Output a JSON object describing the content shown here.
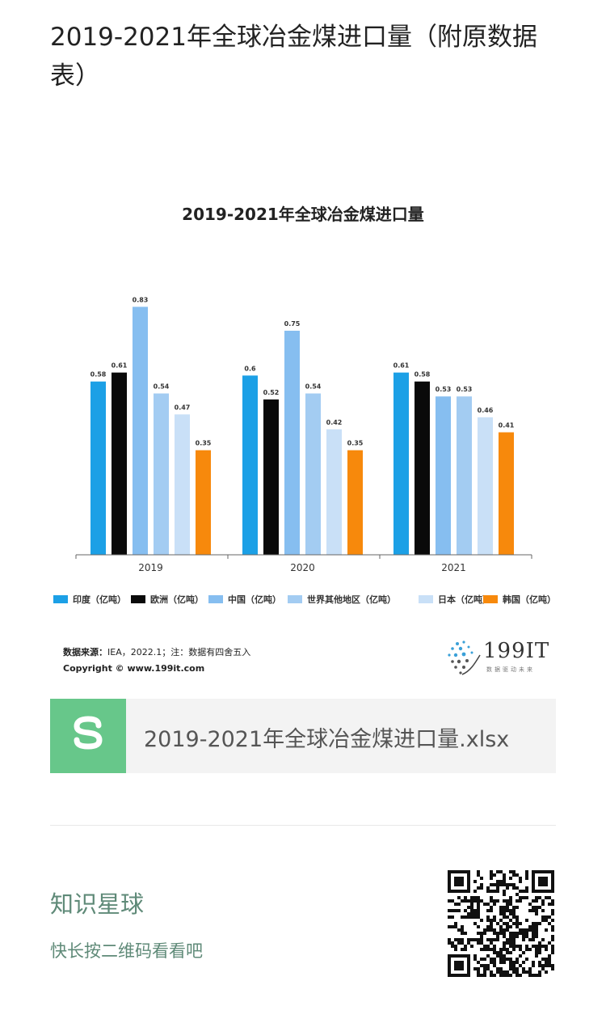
{
  "article": {
    "title": "2019-2021年全球冶金煤进口量（附原数据表）"
  },
  "chart_data": {
    "type": "bar",
    "title": "2019-2021年全球冶金煤进口量",
    "categories": [
      "2019",
      "2020",
      "2021"
    ],
    "series": [
      {
        "name": "印度（亿吨）",
        "color": "#1ca0e6",
        "values": [
          0.58,
          0.6,
          0.61
        ]
      },
      {
        "name": "欧洲（亿吨）",
        "color": "#0a0a0a",
        "values": [
          0.61,
          0.52,
          0.58
        ]
      },
      {
        "name": "中国（亿吨）",
        "color": "#86bef0",
        "values": [
          0.83,
          0.75,
          0.53
        ]
      },
      {
        "name": "世界其他地区（亿吨）",
        "color": "#a3ccf2",
        "values": [
          0.54,
          0.54,
          0.53
        ]
      },
      {
        "name": "日本（亿吨）",
        "color": "#c9e0f7",
        "values": [
          0.47,
          0.42,
          0.46
        ]
      },
      {
        "name": "韩国（亿吨）",
        "color": "#f7890c",
        "values": [
          0.35,
          0.35,
          0.41
        ]
      }
    ],
    "value_labels": [
      [
        "0.58",
        "0.6",
        "0.61"
      ],
      [
        "0.61",
        "0.52",
        "0.58"
      ],
      [
        "0.83",
        "0.75",
        "0.53"
      ],
      [
        "0.54",
        "0.54",
        "0.53"
      ],
      [
        "0.47",
        "0.42",
        "0.46"
      ],
      [
        "0.35",
        "0.35",
        "0.41"
      ]
    ],
    "ylim": [
      0,
      0.85
    ],
    "grid": false,
    "legend_position": "bottom"
  },
  "source": {
    "label": "数据来源：",
    "text": "IEA，2022.1；注：数据有四舍五入",
    "copyright": "Copyright © www.199it.com"
  },
  "logo": {
    "text": "199IT",
    "sub": "数据驱动未来"
  },
  "file": {
    "icon": "wps-sheet-icon",
    "name": "2019-2021年全球冶金煤进口量.xlsx"
  },
  "zhishi": {
    "title": "知识星球",
    "subtitle": "快长按二维码看看吧",
    "qr_icon": "qr-code-icon"
  }
}
